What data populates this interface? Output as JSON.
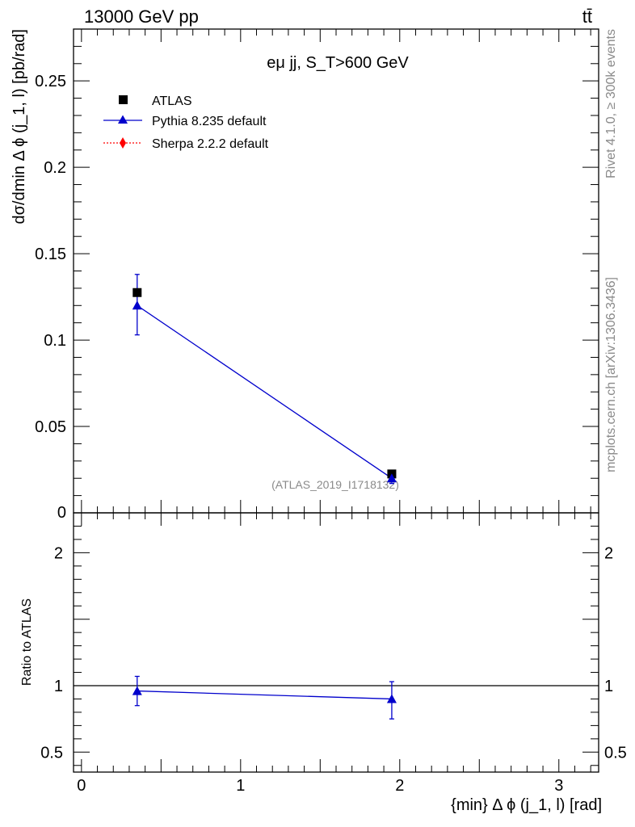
{
  "header": {
    "energy": "13000 GeV pp",
    "process": "tt̄"
  },
  "side": {
    "rivet": "Rivet 4.1.0, ≥ 300k events",
    "mcplots": "mcplots.cern.ch [arXiv:1306.3436]"
  },
  "chart_data": [
    {
      "type": "scatter",
      "panel": "main",
      "title": "eμ jj, S_T>600 GeV",
      "ylabel": "dσ/dmin Δ ϕ (j_1, l) [pb/rad]",
      "xlim": [
        -0.05,
        3.25
      ],
      "ylim": [
        0,
        0.28
      ],
      "yticks": [
        0.05,
        0.1,
        0.15,
        0.2,
        0.25
      ],
      "ytick_labels": [
        "0.05",
        "0.1",
        "0.15",
        "0.2",
        "0.25"
      ],
      "y_origin_label": "0",
      "watermark": "(ATLAS_2019_I1718132)",
      "legend": [
        "ATLAS",
        "Pythia 8.235 default",
        "Sherpa 2.2.2 default"
      ],
      "series": [
        {
          "name": "ATLAS",
          "color": "#000000",
          "marker": "square",
          "x": [
            0.35,
            1.95
          ],
          "y": [
            0.1275,
            0.0225
          ],
          "err": [
            0,
            0
          ]
        },
        {
          "name": "Pythia 8.235 default",
          "color": "#0000cc",
          "marker": "triangle",
          "x": [
            0.35,
            1.95
          ],
          "y": [
            0.12,
            0.02
          ],
          "err_up": [
            0.018,
            0.003
          ],
          "err_down": [
            0.017,
            0.003
          ]
        },
        {
          "name": "Sherpa 2.2.2 default",
          "color": "#ff0000",
          "marker": "diamond",
          "x": [],
          "y": []
        }
      ]
    },
    {
      "type": "scatter",
      "panel": "ratio",
      "ylabel": "Ratio to ATLAS",
      "xlabel": "{min} Δ ϕ (j_1, l) [rad]",
      "xlim": [
        -0.05,
        3.25
      ],
      "ylim": [
        0.35,
        2.3
      ],
      "xticks": [
        0,
        1,
        2,
        3
      ],
      "xtick_labels": [
        "0",
        "1",
        "2",
        "3"
      ],
      "yticks": [
        0.5,
        1,
        2
      ],
      "ytick_labels": [
        "0.5",
        "1",
        "2"
      ],
      "reference_line": 1,
      "series": [
        {
          "name": "Pythia 8.235 default",
          "color": "#0000cc",
          "x": [
            0.35,
            1.95
          ],
          "y": [
            0.96,
            0.9
          ],
          "err_up": [
            0.11,
            0.13
          ],
          "err_down": [
            0.11,
            0.15
          ]
        }
      ]
    }
  ]
}
